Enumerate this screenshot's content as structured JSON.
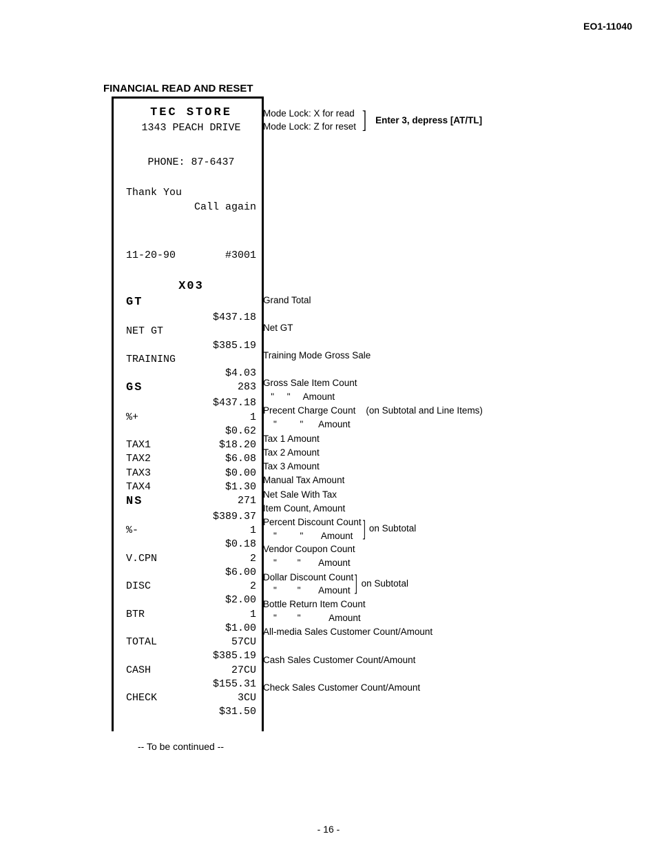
{
  "doc_id": "EO1-11040",
  "title": "FINANCIAL READ AND RESET",
  "store_name": "TEC STORE",
  "store_addr": "1343 PEACH DRIVE",
  "phone": "PHONE: 87-6437",
  "thank": "Thank You",
  "call": "Call again",
  "date": "11-20-90",
  "consec": "#3001",
  "report_code": "X03",
  "mode_x": "Mode Lock:  X for read",
  "mode_z": "Mode Lock:  Z for reset",
  "enter": "Enter 3, depress [AT/TL]",
  "receipt_rows": [
    {
      "l": "GT",
      "r": ""
    },
    {
      "l": "",
      "r": "$437.18"
    },
    {
      "l": "NET GT",
      "r": ""
    },
    {
      "l": "",
      "r": "$385.19"
    },
    {
      "l": "TRAINING",
      "r": ""
    },
    {
      "l": "",
      "r": "$4.03"
    },
    {
      "l": "GS",
      "r": "283"
    },
    {
      "l": "",
      "r": "$437.18"
    },
    {
      "l": "%+",
      "r": "1"
    },
    {
      "l": "",
      "r": "$0.62"
    },
    {
      "l": "TAX1",
      "r": "$18.20"
    },
    {
      "l": "TAX2",
      "r": "$6.08"
    },
    {
      "l": "TAX3",
      "r": "$0.00"
    },
    {
      "l": "TAX4",
      "r": "$1.30"
    },
    {
      "l": "NS",
      "r": "271"
    },
    {
      "l": "",
      "r": "$389.37"
    },
    {
      "l": "%-",
      "r": "1"
    },
    {
      "l": "",
      "r": "$0.18"
    },
    {
      "l": "V.CPN",
      "r": "2"
    },
    {
      "l": "",
      "r": "$6.00"
    },
    {
      "l": "DISC",
      "r": "2"
    },
    {
      "l": "",
      "r": "$2.00"
    },
    {
      "l": "BTR",
      "r": "1"
    },
    {
      "l": "",
      "r": "$1.00"
    },
    {
      "l": "TOTAL",
      "r": "57CU"
    },
    {
      "l": "",
      "r": "$385.19"
    },
    {
      "l": "CASH",
      "r": "27CU"
    },
    {
      "l": "",
      "r": "$155.31"
    },
    {
      "l": "CHECK",
      "r": "3CU"
    },
    {
      "l": "",
      "r": "$31.50"
    }
  ],
  "ann": {
    "gt": "Grand Total",
    "netgt": "Net GT",
    "training": "Training Mode Gross Sale",
    "gs1": "Gross Sale Item Count",
    "gs2": "   \"     \"     Amount",
    "pc1": "Precent Charge Count    (on Subtotal and Line Items)",
    "pc2": "    \"         \"      Amount",
    "tax1": "Tax 1 Amount",
    "tax2": "Tax 2 Amount",
    "tax3": "Tax 3 Amount",
    "tax4": "Manual Tax Amount",
    "ns1": "Net Sale With Tax",
    "ns2": "Item Count, Amount",
    "pd1": "Percent Discount Count",
    "pd2": "    \"         \"       Amount",
    "onsub": "on Subtotal",
    "vc1": "Vendor Coupon Count",
    "vc2": "    \"        \"       Amount",
    "dd1": "Dollar Discount Count",
    "dd2": "    \"        \"       Amount",
    "btr1": "Bottle Return Item Count",
    "btr2": "    \"        \"           Amount",
    "total": "All-media Sales Customer Count/Amount",
    "cash": "Cash Sales Customer Count/Amount",
    "check": "Check Sales Customer Count/Amount"
  },
  "continued": "--  To be continued  --",
  "pagenum": "- 16 -"
}
